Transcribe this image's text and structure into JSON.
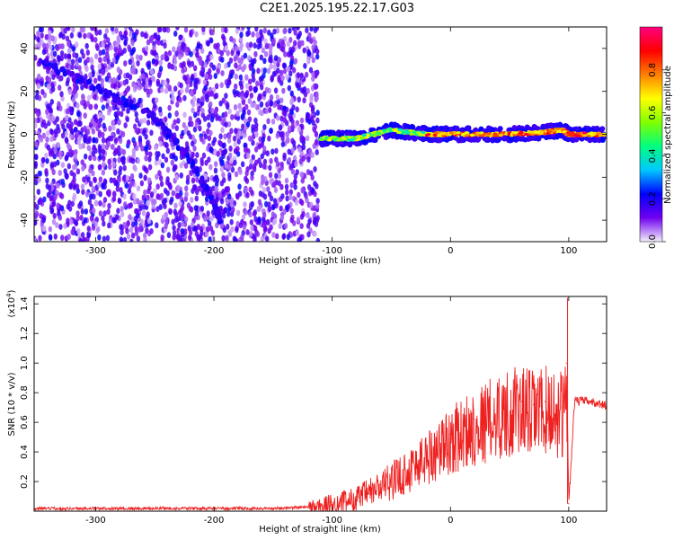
{
  "page_title": "C2E1.2025.195.22.17.G03",
  "chart_data": [
    {
      "type": "heatmap",
      "title": "C2E1.2025.195.22.17.G03",
      "xlabel": "Height of straight line (km)",
      "ylabel": "Frequency (Hz)",
      "xlim": [
        -352,
        132
      ],
      "ylim": [
        -50,
        50
      ],
      "xticks": [
        -300,
        -200,
        -100,
        0,
        100
      ],
      "yticks": [
        -40,
        -20,
        0,
        20,
        40
      ],
      "colorbar": {
        "label": "Normalized spectral amplitude",
        "range": [
          0,
          1
        ],
        "ticks": [
          "0.0",
          "0.2",
          "0.4",
          "0.6",
          "0.8"
        ],
        "colormap": [
          "#f4f0fc",
          "#7000f0",
          "#0000ff",
          "#00c8ff",
          "#00ff80",
          "#80ff00",
          "#ffff00",
          "#ff8000",
          "#ff0000",
          "#ff0080"
        ]
      },
      "noise_region_x": [
        -352,
        -112
      ],
      "features": {
        "chirp": [
          [
            -350,
            35
          ],
          [
            -300,
            22
          ],
          [
            -250,
            8
          ],
          [
            -220,
            -12
          ],
          [
            -200,
            -32
          ],
          [
            -195,
            -40
          ]
        ],
        "carrier": [
          [
            -110,
            -2
          ],
          [
            -80,
            -2
          ],
          [
            -50,
            2
          ],
          [
            -20,
            0
          ],
          [
            0,
            0
          ],
          [
            50,
            0
          ],
          [
            80,
            1
          ],
          [
            95,
            2
          ],
          [
            100,
            0
          ],
          [
            130,
            0
          ]
        ]
      },
      "grid": false
    },
    {
      "type": "line",
      "xlabel": "Height of straight line (km)",
      "ylabel": "SNR (10 * v/v)",
      "scale_label": "(x10",
      "scale_exponent": "4",
      "xlim": [
        -352,
        132
      ],
      "ylim": [
        0,
        1.45
      ],
      "xticks": [
        -300,
        -200,
        -100,
        0,
        100
      ],
      "yticks": [
        "0.2",
        "0.4",
        "0.6",
        "0.8",
        "1.0",
        "1.2",
        "1.4"
      ],
      "series": [
        {
          "color": "#ee2020",
          "x": [
            -352,
            -150,
            -120,
            -100,
            -80,
            -60,
            -40,
            -20,
            0,
            20,
            40,
            60,
            70,
            80,
            90,
            95,
            98,
            100,
            105,
            115,
            132
          ],
          "values": [
            0.02,
            0.02,
            0.03,
            0.06,
            0.1,
            0.18,
            0.28,
            0.4,
            0.52,
            0.62,
            0.7,
            0.74,
            0.72,
            0.74,
            0.72,
            0.7,
            1.0,
            0.05,
            0.75,
            0.75,
            0.72
          ]
        }
      ],
      "grid": false
    }
  ]
}
